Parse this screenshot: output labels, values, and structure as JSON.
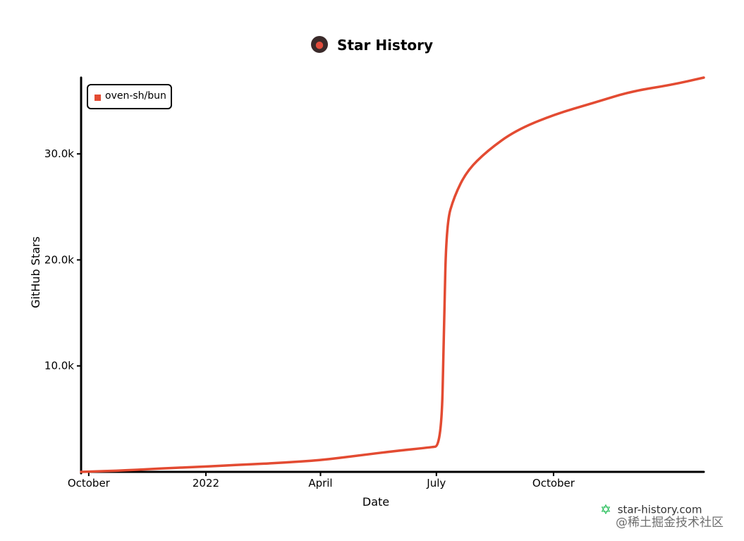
{
  "header": {
    "title": "Star History"
  },
  "watermark": {
    "site": "star-history.com",
    "overlay_text": "@稀土掘金技术社区"
  },
  "colors": {
    "series": "#e34b32",
    "axis": "#000000",
    "brand_star": "#12b84a"
  },
  "chart_data": {
    "type": "line",
    "title": "Star History",
    "xlabel": "Date",
    "ylabel": "GitHub Stars",
    "x_ticks": [
      {
        "date": "2021-10-01",
        "label": "October"
      },
      {
        "date": "2022-01-01",
        "label": "2022"
      },
      {
        "date": "2022-04-01",
        "label": "April"
      },
      {
        "date": "2022-07-01",
        "label": "July"
      },
      {
        "date": "2022-10-01",
        "label": "October"
      }
    ],
    "y_ticks": [
      {
        "value": 10000,
        "label": "10.0k"
      },
      {
        "value": 20000,
        "label": "20.0k"
      },
      {
        "value": 30000,
        "label": "30.0k"
      }
    ],
    "xlim": [
      "2021-09-25",
      "2023-01-27"
    ],
    "ylim": [
      0,
      37200
    ],
    "legend": "top-left",
    "grid": false,
    "series": [
      {
        "name": "oven-sh/bun",
        "points": [
          {
            "x": "2021-09-25",
            "y": 0
          },
          {
            "x": "2021-11-01",
            "y": 150
          },
          {
            "x": "2021-12-01",
            "y": 350
          },
          {
            "x": "2022-01-01",
            "y": 500
          },
          {
            "x": "2022-02-01",
            "y": 700
          },
          {
            "x": "2022-03-01",
            "y": 850
          },
          {
            "x": "2022-04-01",
            "y": 1100
          },
          {
            "x": "2022-05-01",
            "y": 1550
          },
          {
            "x": "2022-06-01",
            "y": 2000
          },
          {
            "x": "2022-06-25",
            "y": 2300
          },
          {
            "x": "2022-07-05",
            "y": 2450
          },
          {
            "x": "2022-07-07",
            "y": 14000
          },
          {
            "x": "2022-07-09",
            "y": 23500
          },
          {
            "x": "2022-07-15",
            "y": 26000
          },
          {
            "x": "2022-07-25",
            "y": 28400
          },
          {
            "x": "2022-08-10",
            "y": 30300
          },
          {
            "x": "2022-09-01",
            "y": 32200
          },
          {
            "x": "2022-10-01",
            "y": 33700
          },
          {
            "x": "2022-11-01",
            "y": 34800
          },
          {
            "x": "2022-12-01",
            "y": 35900
          },
          {
            "x": "2023-01-01",
            "y": 36500
          },
          {
            "x": "2023-01-27",
            "y": 37200
          }
        ]
      }
    ]
  }
}
